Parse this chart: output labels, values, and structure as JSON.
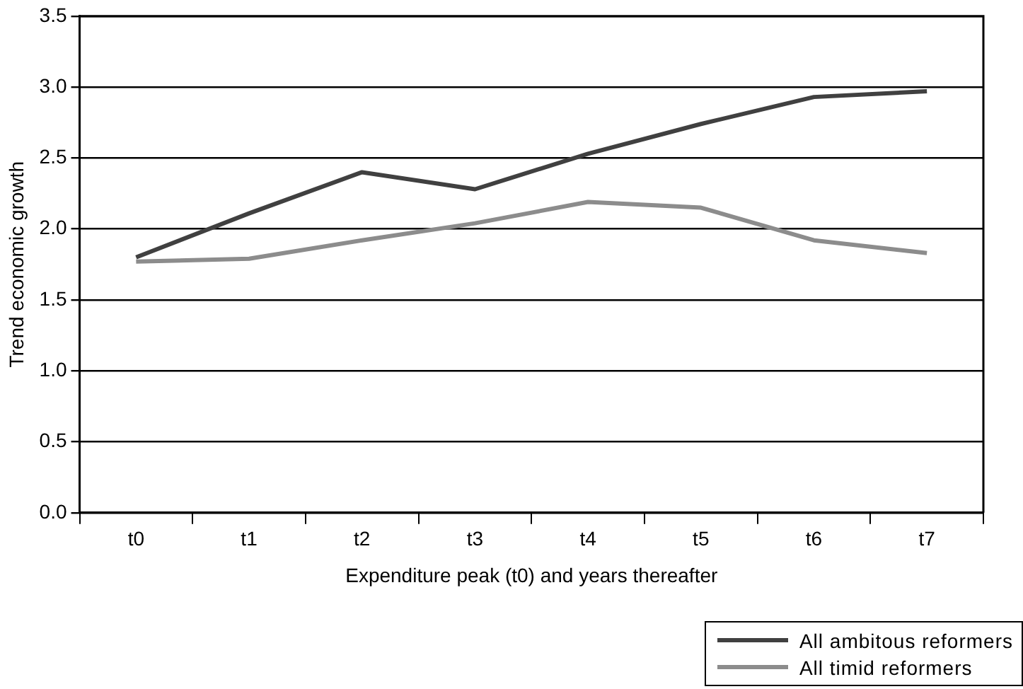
{
  "chart_data": {
    "type": "line",
    "xlabel": "Expenditure peak (t0) and years thereafter",
    "ylabel": "Trend economic growth",
    "categories": [
      "t0",
      "t1",
      "t2",
      "t3",
      "t4",
      "t5",
      "t6",
      "t7"
    ],
    "series": [
      {
        "name": "All ambitous reformers",
        "color": "#404040",
        "values": [
          1.8,
          2.11,
          2.4,
          2.28,
          2.53,
          2.74,
          2.93,
          2.97
        ]
      },
      {
        "name": "All timid reformers",
        "color": "#8c8c8c",
        "values": [
          1.77,
          1.79,
          1.92,
          2.04,
          2.19,
          2.15,
          1.92,
          1.83
        ]
      }
    ],
    "ylim": [
      0,
      3.5
    ],
    "yticks": [
      {
        "value": 0,
        "label": "0.0"
      },
      {
        "value": 0.5,
        "label": "0.5"
      },
      {
        "value": 1,
        "label": "1.0"
      },
      {
        "value": 1.5,
        "label": "1.5"
      },
      {
        "value": 2,
        "label": "2.0"
      },
      {
        "value": 2.5,
        "label": "2.5"
      },
      {
        "value": 3,
        "label": "3.0"
      },
      {
        "value": 3.5,
        "label": "3.5"
      }
    ],
    "grid": "y",
    "legend": "bottom right",
    "marker": "none",
    "line_style": "solid"
  }
}
